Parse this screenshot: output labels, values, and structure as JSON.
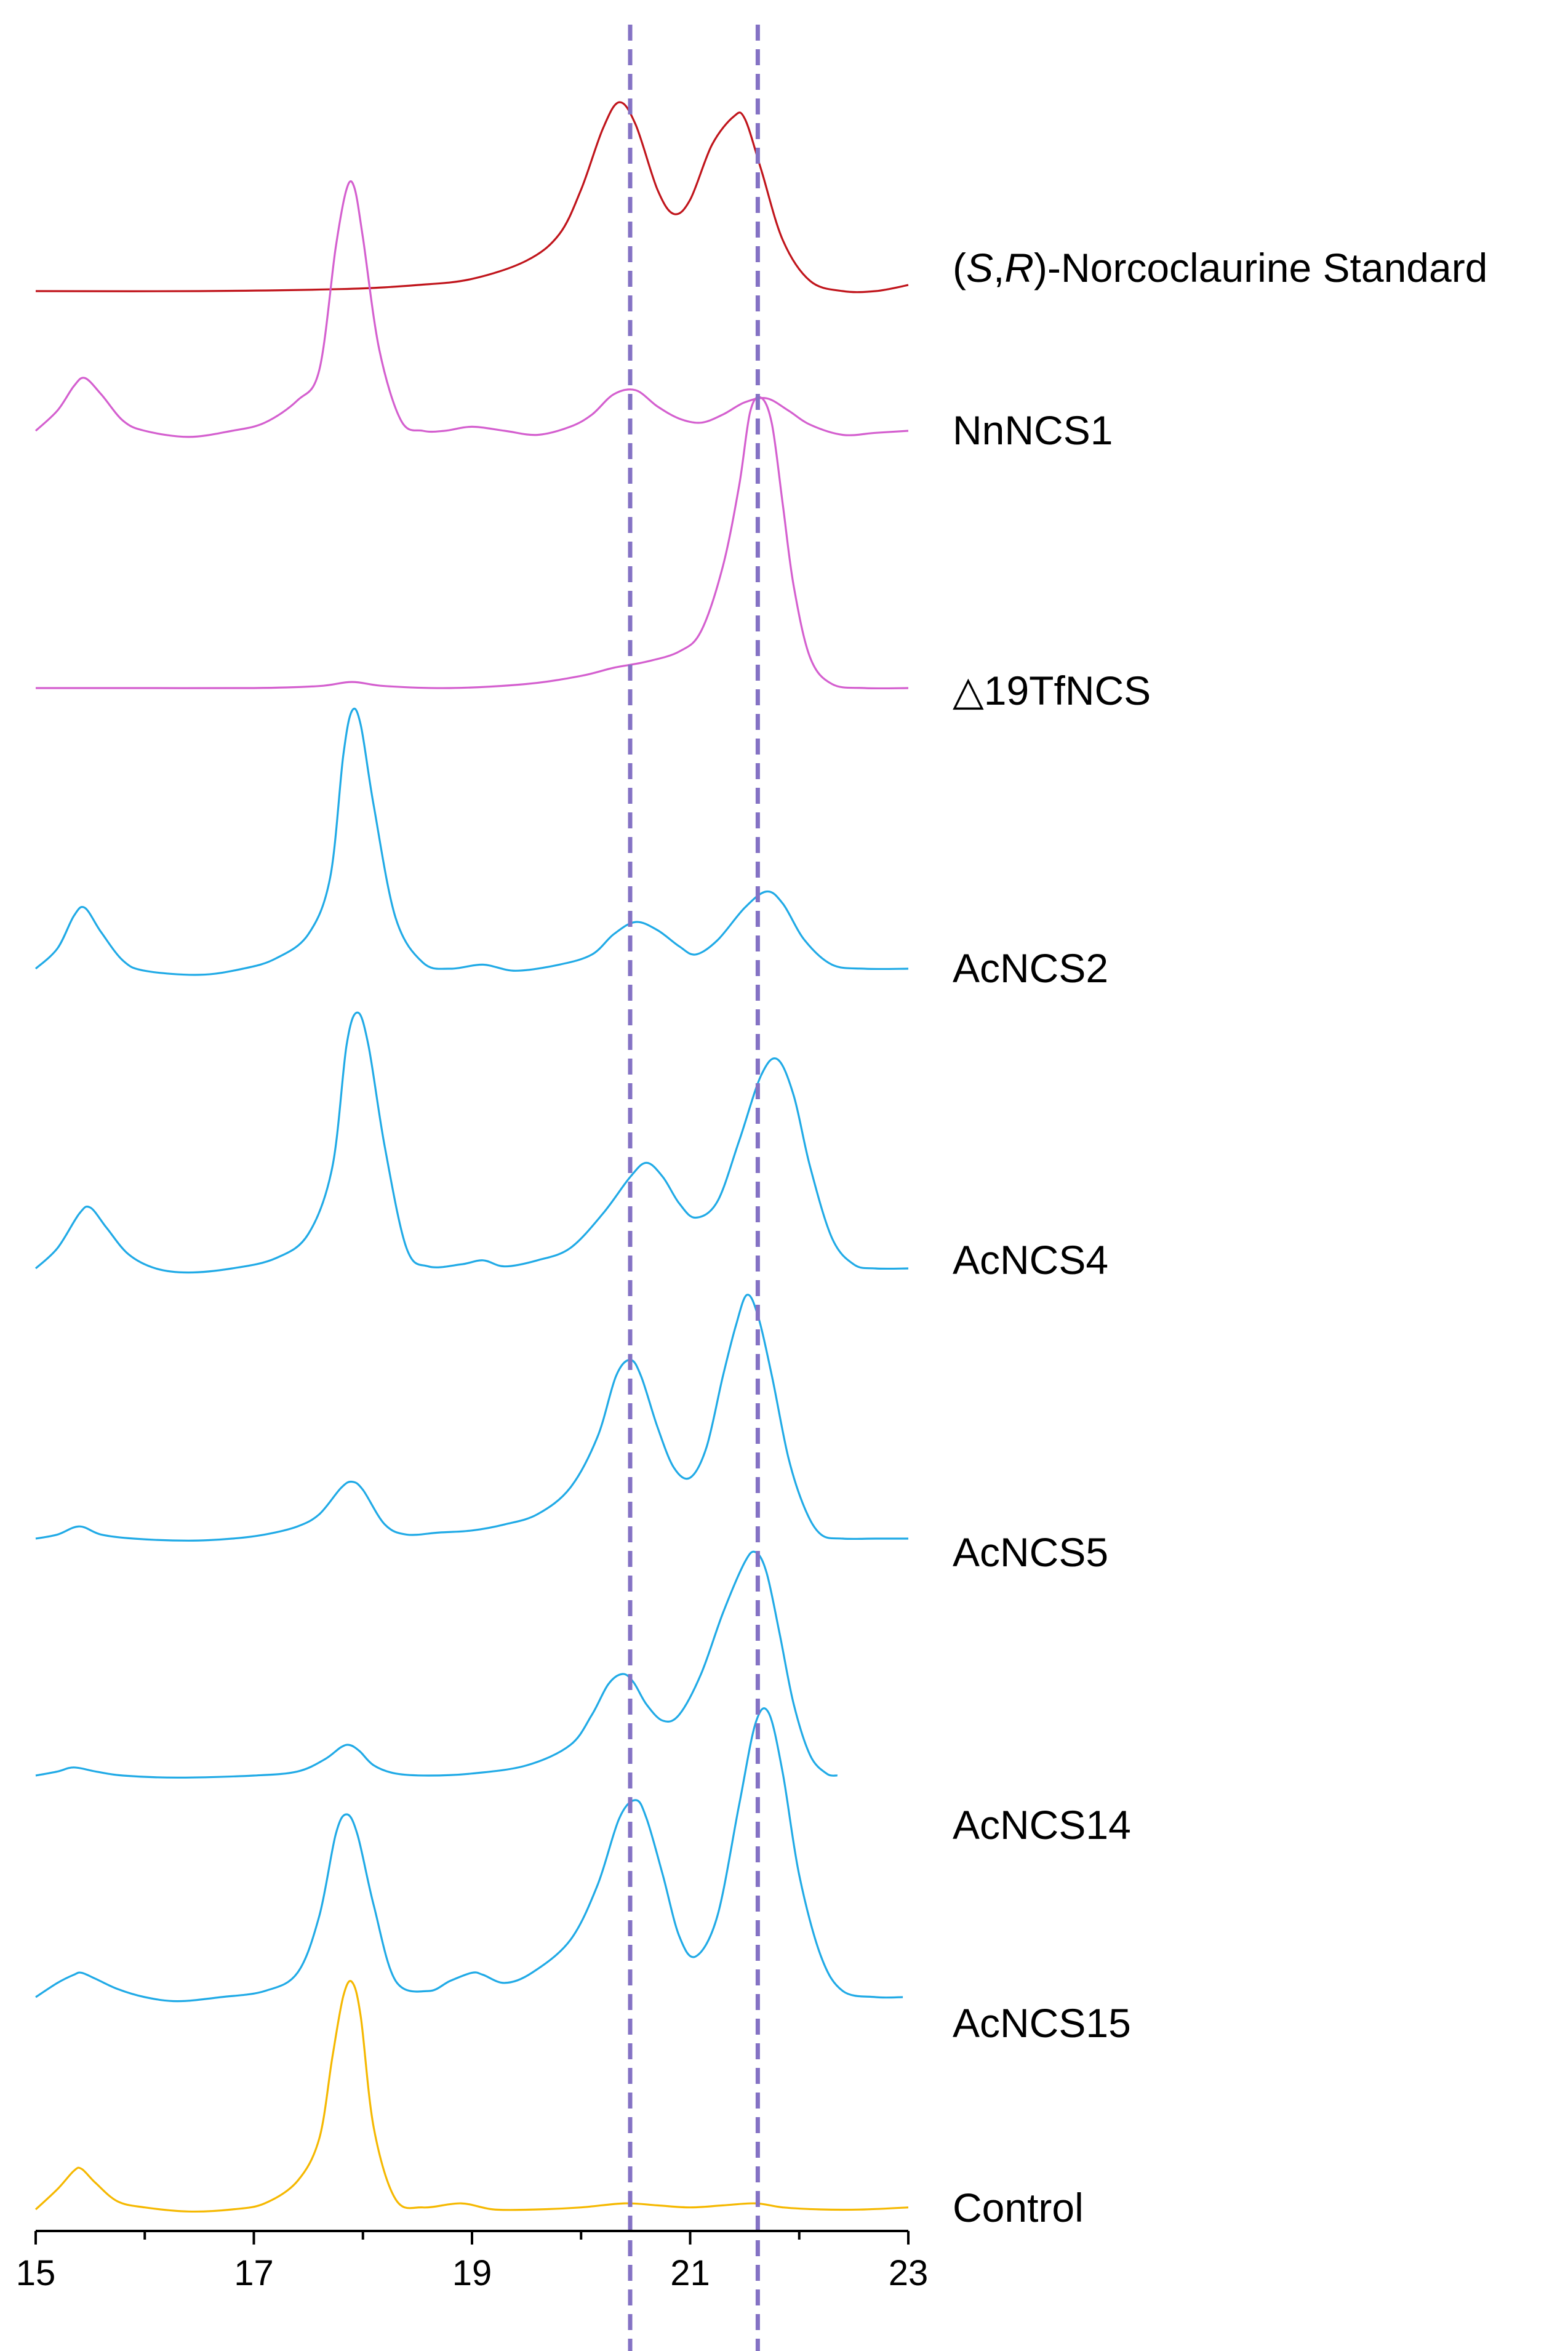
{
  "chart_data": {
    "type": "line",
    "title": "",
    "xlabel": "",
    "ylabel": "",
    "xlim": [
      15,
      23
    ],
    "xticks": [
      "15",
      "17",
      "19",
      "21",
      "23"
    ],
    "grid": false,
    "reference_lines": [
      20.45,
      21.62
    ],
    "reference_line_color": "#8472C4",
    "series": [
      {
        "name": "Norcoclaurine Standard",
        "label_parts": [
          "(",
          "S",
          ",",
          "R",
          ")-Norcoclaurine Standard"
        ],
        "color": "#C0141B",
        "baseline_relative": 0.0,
        "x": [
          15.0,
          16.5,
          17.8,
          18.5,
          19.0,
          19.5,
          19.8,
          20.0,
          20.2,
          20.35,
          20.5,
          20.7,
          20.85,
          21.0,
          21.2,
          21.4,
          21.5,
          21.65,
          21.85,
          22.1,
          22.4,
          22.7,
          23.0
        ],
        "y": [
          0.0,
          0.0,
          0.01,
          0.03,
          0.06,
          0.15,
          0.28,
          0.5,
          0.8,
          0.93,
          0.82,
          0.5,
          0.38,
          0.45,
          0.72,
          0.86,
          0.85,
          0.6,
          0.25,
          0.05,
          0.0,
          0.0,
          0.03
        ]
      },
      {
        "name": "NnNCS1",
        "color": "#D45FCF",
        "baseline_relative": 0.0,
        "x": [
          15.0,
          15.2,
          15.35,
          15.45,
          15.6,
          15.8,
          16.0,
          16.4,
          16.8,
          17.1,
          17.4,
          17.6,
          17.75,
          17.85,
          17.92,
          18.0,
          18.15,
          18.35,
          18.55,
          18.75,
          19.0,
          19.3,
          19.6,
          19.9,
          20.1,
          20.3,
          20.5,
          20.7,
          20.9,
          21.1,
          21.3,
          21.5,
          21.7,
          21.9,
          22.1,
          22.4,
          22.7,
          23.0
        ],
        "y": [
          0.0,
          0.1,
          0.22,
          0.26,
          0.18,
          0.05,
          0.0,
          -0.03,
          0.0,
          0.04,
          0.15,
          0.3,
          0.9,
          1.19,
          1.2,
          0.95,
          0.4,
          0.05,
          0.0,
          0.0,
          0.02,
          0.0,
          -0.02,
          0.02,
          0.08,
          0.18,
          0.2,
          0.12,
          0.06,
          0.04,
          0.08,
          0.14,
          0.16,
          0.1,
          0.03,
          -0.02,
          -0.01,
          0.0
        ]
      },
      {
        "name": "△19TfNCS",
        "color": "#D45FCF",
        "baseline_relative": 0.0,
        "x": [
          15.0,
          16.0,
          17.0,
          17.6,
          17.9,
          18.2,
          18.8,
          19.5,
          20.0,
          20.3,
          20.6,
          20.9,
          21.1,
          21.3,
          21.45,
          21.55,
          21.65,
          21.75,
          21.85,
          21.95,
          22.1,
          22.3,
          22.6,
          23.0
        ],
        "y": [
          0.0,
          0.0,
          0.0,
          0.01,
          0.03,
          0.01,
          0.0,
          0.02,
          0.06,
          0.1,
          0.13,
          0.18,
          0.28,
          0.6,
          1.0,
          1.36,
          1.43,
          1.3,
          0.9,
          0.5,
          0.15,
          0.02,
          0.0,
          0.0
        ]
      },
      {
        "name": "AcNCS2",
        "color": "#20AAE6",
        "baseline_relative": 0.0,
        "x": [
          15.0,
          15.2,
          15.35,
          15.45,
          15.6,
          15.8,
          16.0,
          16.5,
          16.9,
          17.2,
          17.5,
          17.7,
          17.82,
          17.9,
          17.98,
          18.1,
          18.3,
          18.55,
          18.8,
          19.1,
          19.4,
          19.8,
          20.1,
          20.3,
          20.5,
          20.7,
          20.9,
          21.05,
          21.25,
          21.5,
          21.7,
          21.85,
          22.05,
          22.3,
          22.6,
          23.0
        ],
        "y": [
          0.0,
          0.1,
          0.26,
          0.3,
          0.18,
          0.04,
          -0.01,
          -0.03,
          0.0,
          0.05,
          0.17,
          0.45,
          1.05,
          1.27,
          1.2,
          0.8,
          0.25,
          0.03,
          0.0,
          0.02,
          -0.01,
          0.02,
          0.07,
          0.17,
          0.23,
          0.19,
          0.11,
          0.07,
          0.14,
          0.3,
          0.38,
          0.32,
          0.14,
          0.02,
          0.0,
          0.0
        ]
      },
      {
        "name": "AcNCS4",
        "color": "#20AAE6",
        "baseline_relative": 0.0,
        "x": [
          15.0,
          15.2,
          15.4,
          15.5,
          15.65,
          15.85,
          16.1,
          16.4,
          16.8,
          17.2,
          17.5,
          17.72,
          17.85,
          17.95,
          18.05,
          18.2,
          18.4,
          18.6,
          18.9,
          19.1,
          19.3,
          19.6,
          19.9,
          20.2,
          20.45,
          20.6,
          20.75,
          20.9,
          21.05,
          21.25,
          21.45,
          21.65,
          21.8,
          21.95,
          22.1,
          22.3,
          22.5,
          22.7,
          23.0
        ],
        "y": [
          0.0,
          0.1,
          0.27,
          0.3,
          0.2,
          0.07,
          0.0,
          -0.02,
          0.0,
          0.05,
          0.17,
          0.5,
          1.1,
          1.26,
          1.1,
          0.6,
          0.1,
          0.01,
          0.02,
          0.04,
          0.01,
          0.04,
          0.1,
          0.27,
          0.45,
          0.52,
          0.45,
          0.32,
          0.25,
          0.33,
          0.63,
          0.95,
          1.03,
          0.85,
          0.5,
          0.15,
          0.02,
          0.0,
          0.0
        ]
      },
      {
        "name": "AcNCS5",
        "color": "#20AAE6",
        "baseline_relative": 0.0,
        "x": [
          15.0,
          15.2,
          15.4,
          15.6,
          15.9,
          16.4,
          16.8,
          17.1,
          17.4,
          17.6,
          17.8,
          17.9,
          18.0,
          18.2,
          18.4,
          18.7,
          19.0,
          19.3,
          19.6,
          19.9,
          20.15,
          20.32,
          20.45,
          20.55,
          20.7,
          20.85,
          21.0,
          21.15,
          21.3,
          21.42,
          21.52,
          21.62,
          21.75,
          21.9,
          22.05,
          22.2,
          22.4,
          22.7,
          23.0
        ],
        "y": [
          0.0,
          0.02,
          0.06,
          0.02,
          0.0,
          -0.01,
          0.0,
          0.02,
          0.06,
          0.12,
          0.25,
          0.28,
          0.24,
          0.07,
          0.02,
          0.03,
          0.04,
          0.07,
          0.12,
          0.25,
          0.5,
          0.8,
          0.88,
          0.8,
          0.55,
          0.35,
          0.3,
          0.45,
          0.8,
          1.05,
          1.2,
          1.1,
          0.8,
          0.4,
          0.15,
          0.02,
          0.0,
          0.0,
          0.0
        ]
      },
      {
        "name": "AcNCS14",
        "color": "#20AAE6",
        "baseline_relative": 0.0,
        "x": [
          15.0,
          15.2,
          15.35,
          15.55,
          15.8,
          16.3,
          17.0,
          17.4,
          17.65,
          17.8,
          17.88,
          17.97,
          18.1,
          18.3,
          18.6,
          19.0,
          19.5,
          19.9,
          20.1,
          20.25,
          20.38,
          20.48,
          20.6,
          20.75,
          20.9,
          21.1,
          21.3,
          21.5,
          21.6,
          21.7,
          21.82,
          21.95,
          22.1,
          22.25,
          22.35
        ],
        "y": [
          0.0,
          0.02,
          0.04,
          0.02,
          0.0,
          -0.01,
          0.0,
          0.02,
          0.08,
          0.14,
          0.15,
          0.12,
          0.05,
          0.01,
          0.0,
          0.01,
          0.05,
          0.15,
          0.3,
          0.45,
          0.5,
          0.46,
          0.35,
          0.27,
          0.3,
          0.5,
          0.8,
          1.05,
          1.1,
          1.0,
          0.7,
          0.35,
          0.1,
          0.01,
          0.0
        ]
      },
      {
        "name": "AcNCS15",
        "color": "#20AAE6",
        "baseline_relative": 0.0,
        "x": [
          15.0,
          15.2,
          15.35,
          15.42,
          15.55,
          15.75,
          16.0,
          16.3,
          16.7,
          17.1,
          17.4,
          17.6,
          17.75,
          17.85,
          17.95,
          18.1,
          18.3,
          18.6,
          18.8,
          19.0,
          19.1,
          19.3,
          19.55,
          19.9,
          20.15,
          20.35,
          20.5,
          20.6,
          20.75,
          20.9,
          21.05,
          21.25,
          21.45,
          21.6,
          21.72,
          21.85,
          22.0,
          22.2,
          22.4,
          22.7,
          22.95
        ],
        "y": [
          0.0,
          0.07,
          0.11,
          0.12,
          0.09,
          0.04,
          0.0,
          -0.02,
          0.0,
          0.03,
          0.12,
          0.4,
          0.8,
          0.9,
          0.8,
          0.45,
          0.08,
          0.03,
          0.08,
          0.12,
          0.11,
          0.07,
          0.12,
          0.28,
          0.55,
          0.88,
          0.97,
          0.88,
          0.6,
          0.3,
          0.2,
          0.4,
          0.95,
          1.35,
          1.4,
          1.1,
          0.6,
          0.2,
          0.03,
          0.0,
          0.0
        ]
      },
      {
        "name": "Control",
        "color": "#F5B800",
        "baseline_relative": 0.0,
        "x": [
          15.0,
          15.2,
          15.35,
          15.42,
          15.55,
          15.75,
          16.0,
          16.4,
          16.8,
          17.1,
          17.4,
          17.6,
          17.72,
          17.82,
          17.9,
          17.98,
          18.1,
          18.3,
          18.55,
          18.9,
          19.2,
          19.6,
          20.0,
          20.4,
          20.7,
          21.0,
          21.3,
          21.6,
          21.85,
          22.2,
          22.6,
          23.0
        ],
        "y": [
          0.0,
          0.1,
          0.19,
          0.2,
          0.13,
          0.04,
          0.01,
          -0.01,
          0.0,
          0.03,
          0.14,
          0.35,
          0.75,
          1.05,
          1.12,
          0.95,
          0.4,
          0.05,
          0.01,
          0.03,
          0.0,
          0.0,
          0.01,
          0.03,
          0.02,
          0.01,
          0.02,
          0.03,
          0.01,
          0.0,
          0.0,
          0.01
        ]
      }
    ]
  }
}
